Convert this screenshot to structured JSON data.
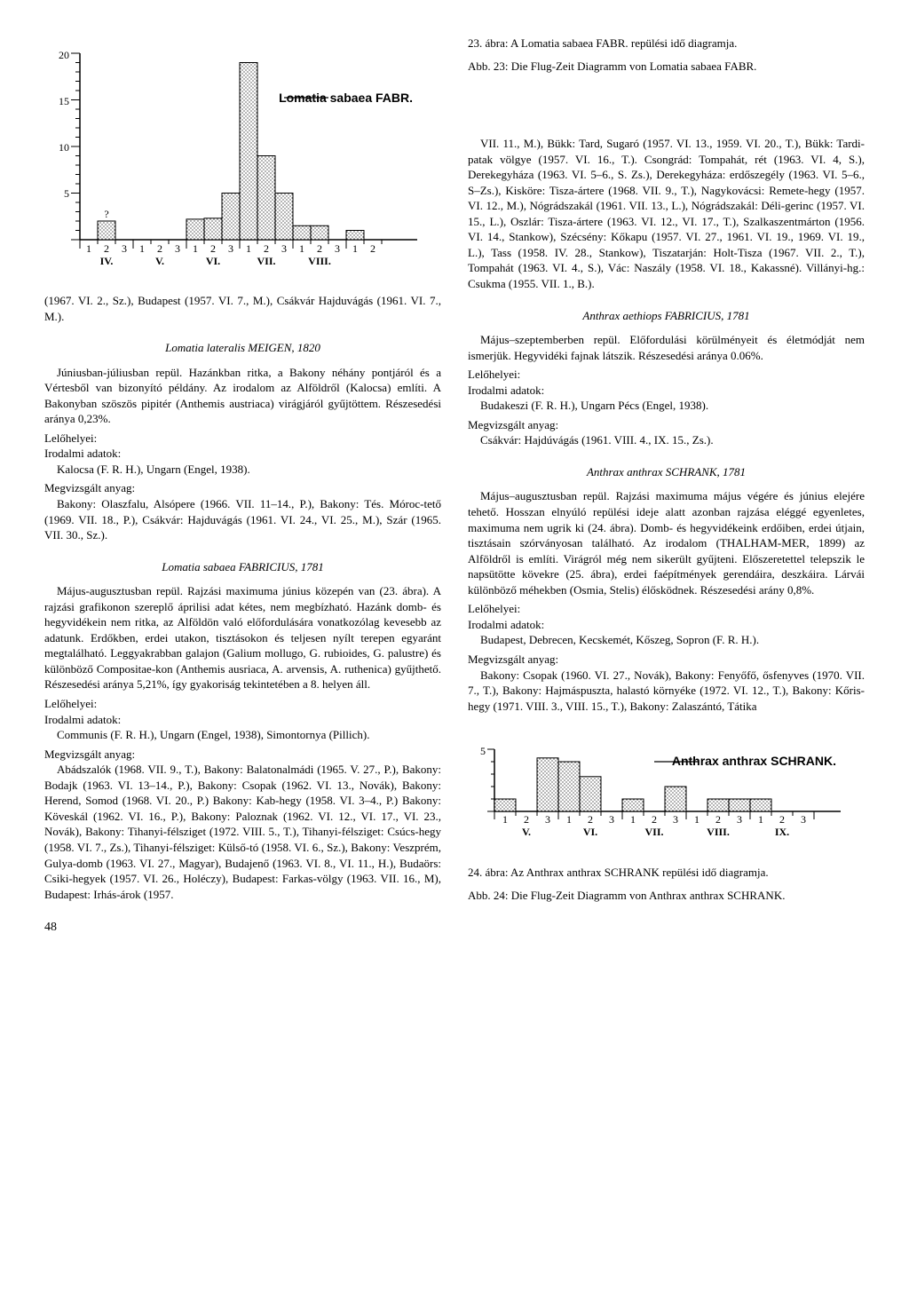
{
  "chart1": {
    "type": "bar-histogram",
    "title": "Lomatia sabaea FABR.",
    "y_max": 20,
    "y_ticks": [
      0,
      5,
      10,
      15,
      20
    ],
    "bar_fill": "url(#hatch1)",
    "bar_stroke": "#000000",
    "axis_color": "#000000",
    "background_color": "#ffffff",
    "months_labels": [
      "IV.",
      "V.",
      "VI.",
      "VII.",
      "VIII."
    ],
    "bars": [
      {
        "pos": 2,
        "h": 2,
        "question": true
      },
      {
        "pos": 7,
        "h": 2.2
      },
      {
        "pos": 8,
        "h": 2.3
      },
      {
        "pos": 9,
        "h": 5
      },
      {
        "pos": 10,
        "h": 19
      },
      {
        "pos": 11,
        "h": 9
      },
      {
        "pos": 12,
        "h": 5
      },
      {
        "pos": 13,
        "h": 1.5
      },
      {
        "pos": 14,
        "h": 1.5
      },
      {
        "pos": 16,
        "h": 1.0
      }
    ]
  },
  "chart2": {
    "type": "bar-histogram",
    "title": "Anthrax anthrax SCHRANK.",
    "y_max": 5,
    "y_ticks": [
      0,
      5
    ],
    "bar_fill": "url(#hatch2)",
    "bar_stroke": "#000000",
    "axis_color": "#000000",
    "background_color": "#ffffff",
    "months_labels": [
      "V.",
      "VI.",
      "VII.",
      "VIII.",
      "IX."
    ],
    "bars": [
      {
        "pos": 1,
        "h": 1.0
      },
      {
        "pos": 3,
        "h": 4.3
      },
      {
        "pos": 4,
        "h": 4.0
      },
      {
        "pos": 5,
        "h": 2.8
      },
      {
        "pos": 7,
        "h": 1.0
      },
      {
        "pos": 9,
        "h": 2.0
      },
      {
        "pos": 11,
        "h": 1.0
      },
      {
        "pos": 12,
        "h": 1.0
      },
      {
        "pos": 13,
        "h": 1.0
      }
    ]
  },
  "captions": {
    "fig23_hu": "23. ábra: A Lomatia sabaea FABR. repülési idő diagramja.",
    "fig23_de": "Abb. 23: Die Flug-Zeit Diagramm von Lomatia sabaea FABR.",
    "fig24_hu": "24. ábra: Az Anthrax anthrax SCHRANK  repülési idő diagramja.",
    "fig24_de": "Abb. 24: Die Flug-Zeit Diagramm von Anthrax anthrax SCHRANK."
  },
  "left": {
    "frag1": "(1967. VI. 2., Sz.), Budapest (1957. VI. 7., M.), Csákvár Hajduvágás (1961. VI. 7., M.).",
    "species1": "Lomatia lateralis MEIGEN, 1820",
    "p1": "Júniusban-júliusban repül. Hazánkban ritka, a Bakony néhány pontjáról és a Vértesből van bizonyító példány. Az irodalom az Alföldről (Kalocsa) említi. A Bakonyban szöszös pipitér (Anthemis austriaca) virágjáról gyűjtöttem. Részesedési aránya 0,23%.",
    "lel1": "Lelőhelyei:",
    "iro1": "Irodalmi adatok:",
    "iro1a": "Kalocsa (F. R. H.), Ungarn (Engel, 1938).",
    "meg1": "Megvizsgált anyag:",
    "meg1a": "Bakony: Olaszfalu, Alsópere (1966. VII. 11–14., P.), Bakony: Tés. Móroc-tető (1969. VII. 18., P.), Csákvár: Hajduvágás (1961. VI. 24., VI. 25., M.), Szár (1965. VII. 30., Sz.).",
    "species2": "Lomatia sabaea FABRICIUS, 1781",
    "p2": "Május-augusztusban repül. Rajzási maximuma június közepén van (23. ábra). A rajzási grafikonon szereplő áprilisi adat kétes, nem megbízható. Hazánk domb- és hegyvidékein nem ritka, az Alföldön való előfordulására vonatkozólag kevesebb az adatunk. Erdőkben, erdei utakon, tisztásokon és teljesen nyílt terepen egyaránt megtalálható. Leggyakrabban galajon (Galium mollugo, G. rubioides, G. palustre) és különböző Compositae-kon (Anthemis ausriaca, A. arvensis, A. ruthenica) gyűjthető. Részesedési aránya 5,21%, így gyakoriság tekintetében a 8. helyen áll.",
    "lel2": "Lelőhelyei:",
    "iro2": "Irodalmi adatok:",
    "iro2a": "Communis (F. R. H.), Ungarn (Engel, 1938), Simontornya (Pillich).",
    "meg2": "Megvizsgált anyag:",
    "meg2a": "Abádszalók (1968. VII. 9., T.), Bakony: Balatonalmádi (1965. V. 27., P.), Bakony: Bodajk (1963. VI. 13–14., P.), Bakony: Csopak (1962. VI. 13., Novák), Bakony: Herend, Somod (1968. VI. 20., P.) Bakony: Kab-hegy (1958. VI. 3–4., P.) Bakony: Köveskál (1962. VI. 16., P.), Bakony: Paloznak (1962. VI. 12., VI. 17., VI. 23., Novák), Bakony: Tihanyi-félsziget (1972. VIII. 5., T.), Tihanyi-félsziget: Csúcs-hegy (1958. VI. 7., Zs.), Tihanyi-félsziget: Külső-tó (1958. VI. 6., Sz.), Bakony: Veszprém, Gulya-domb (1963. VI. 27., Magyar), Budajenő (1963. VI. 8., VI. 11., H.), Budaörs: Csiki-hegyek (1957. VI. 26., Holéczy), Budapest: Farkas-völgy (1963. VII. 16., M), Budapest: Irhás-árok (1957."
  },
  "right": {
    "p1": "VII. 11., M.), Bükk: Tard, Sugaró (1957. VI. 13., 1959. VI. 20., T.), Bükk: Tardi-patak völgye (1957. VI. 16., T.). Csongrád: Tompahát, rét (1963. VI. 4, S.), Derekegyháza (1963. VI. 5–6., S. Zs.), Derekegyháza: erdőszegély (1963. VI. 5–6., S–Zs.), Kisköre: Tisza-ártere (1968. VII. 9., T.), Nagykovácsi: Remete-hegy (1957. VI. 12., M.), Nógrádszakál (1961. VII. 13., L.), Nógrádszakál: Déli-gerinc (1957. VI. 15., L.), Oszlár: Tisza-ártere (1963. VI. 12., VI. 17., T.), Szalkaszentmárton (1956. VI. 14., Stankow), Szécsény: Kőkapu (1957. VI. 27., 1961. VI. 19., 1969. VI. 19., L.), Tass (1958. IV. 28., Stankow), Tiszatarján: Holt-Tisza (1967. VII. 2., T.), Tompahát (1963. VI. 4., S.), Vác: Naszály (1958. VI. 18., Kakassné). Villányi-hg.: Csukma (1955. VII. 1., B.).",
    "species1": "Anthrax aethiops FABRICIUS, 1781",
    "p2": "Május–szeptemberben repül. Előfordulási körülményeit és életmódját nem ismerjük. Hegyvidéki fajnak látszik. Részesedési aránya 0.06%.",
    "lel1": "Lelőhelyei:",
    "iro1": "Irodalmi adatok:",
    "iro1a": "Budakeszi (F. R. H.), Ungarn Pécs (Engel, 1938).",
    "meg1": "Megvizsgált anyag:",
    "meg1a": "Csákvár: Hajdúvágás (1961. VIII. 4., IX. 15., Zs.).",
    "species2": "Anthrax anthrax SCHRANK, 1781",
    "p3": "Május–augusztusban repül. Rajzási maximuma május végére és június elejére tehető. Hosszan elnyúló repülési ideje alatt azonban rajzása eléggé egyenletes, maximuma nem ugrik ki (24. ábra). Domb- és hegyvidékeink erdőiben, erdei útjain, tisztásain szórványosan található. Az irodalom (THALHAM-MER, 1899) az Alföldről is említi. Virágról még nem sikerült gyűjteni. Előszeretettel telepszik le napsütötte kövekre (25. ábra), erdei faépítmények gerendáira, deszkáira. Lárvái különböző méhekben (Osmia, Stelis) élősködnek. Részesedési arány 0,8%.",
    "lel2": "Lelőhelyei:",
    "iro2": "Irodalmi adatok:",
    "iro2a": "Budapest, Debrecen, Kecskemét, Kőszeg, Sopron (F. R. H.).",
    "meg2": "Megvizsgált anyag:",
    "meg2a": "Bakony: Csopak (1960. VI. 27., Novák), Bakony: Fenyőfő, ősfenyves (1970. VII. 7., T.), Bakony: Hajmáspuszta, halastó környéke (1972. VI. 12., T.), Bakony: Kőris-hegy (1971. VIII. 3., VIII. 15., T.), Bakony: Zalaszántó, Tátika"
  },
  "page_number": "48"
}
